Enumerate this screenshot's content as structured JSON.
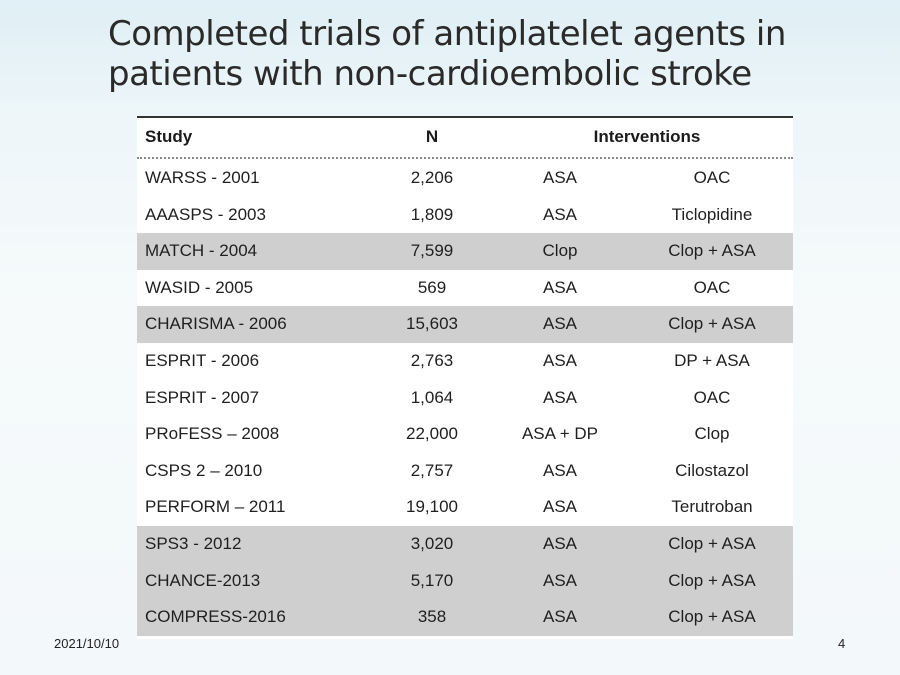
{
  "slide": {
    "title_line1": "Completed trials of antiplatelet agents in",
    "title_line2": "patients with non-cardioembolic stroke",
    "date": "2021/10/10",
    "page_number": "4"
  },
  "table": {
    "headers": {
      "study": "Study",
      "n": "N",
      "interventions": "Interventions"
    },
    "rows": [
      {
        "study": "WARSS - 2001",
        "n": "2,206",
        "int1": "ASA",
        "int2": "OAC",
        "shaded": false
      },
      {
        "study": "AAASPS - 2003",
        "n": "1,809",
        "int1": "ASA",
        "int2": "Ticlopidine",
        "shaded": false
      },
      {
        "study": "MATCH - 2004",
        "n": "7,599",
        "int1": "Clop",
        "int2": "Clop + ASA",
        "shaded": true
      },
      {
        "study": "WASID - 2005",
        "n": "569",
        "int1": "ASA",
        "int2": "OAC",
        "shaded": false
      },
      {
        "study": "CHARISMA - 2006",
        "n": "15,603",
        "int1": "ASA",
        "int2": "Clop + ASA",
        "shaded": true
      },
      {
        "study": "ESPRIT - 2006",
        "n": "2,763",
        "int1": "ASA",
        "int2": "DP + ASA",
        "shaded": false
      },
      {
        "study": "ESPRIT - 2007",
        "n": "1,064",
        "int1": "ASA",
        "int2": "OAC",
        "shaded": false
      },
      {
        "study": "PRoFESS – 2008",
        "n": "22,000",
        "int1": "ASA + DP",
        "int2": "Clop",
        "shaded": false
      },
      {
        "study": "CSPS 2 – 2010",
        "n": "2,757",
        "int1": "ASA",
        "int2": "Cilostazol",
        "shaded": false
      },
      {
        "study": "PERFORM – 2011",
        "n": "19,100",
        "int1": "ASA",
        "int2": "Terutroban",
        "shaded": false
      },
      {
        "study": "SPS3 - 2012",
        "n": "3,020",
        "int1": "ASA",
        "int2": "Clop + ASA",
        "shaded": true
      },
      {
        "study": "CHANCE-2013",
        "n": "5,170",
        "int1": "ASA",
        "int2": "Clop + ASA",
        "shaded": true
      },
      {
        "study": "COMPRESS-2016",
        "n": "358",
        "int1": "ASA",
        "int2": "Clop + ASA",
        "shaded": true
      }
    ]
  }
}
